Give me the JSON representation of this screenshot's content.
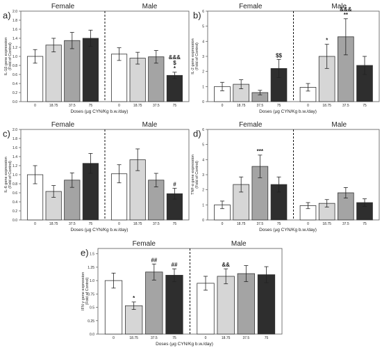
{
  "panel_letters": [
    "a)",
    "b)",
    "c)",
    "d)",
    "e)"
  ],
  "colors": {
    "0": "#ffffff",
    "18.75": "#d6d6d6",
    "37.5": "#a4a4a4",
    "75": "#2e2e2e"
  },
  "chart_data": [
    {
      "type": "bar",
      "letter": "a)",
      "ylabel": "IL-1β gene expression",
      "ylabel2": "(Fold of Control)",
      "xlabel": "Doses (µg CYN/Kg b.w./day)",
      "ylim": [
        0,
        2.0
      ],
      "yticks": [
        0,
        0.2,
        0.4,
        0.6,
        0.8,
        1.0,
        1.2,
        1.4,
        1.6,
        1.8,
        2.0
      ],
      "ytick_labels": [
        "0.0",
        "0.2",
        "0.4",
        "0.6",
        "0.8",
        "1.0",
        "1.2",
        "1.4",
        "1.6",
        "1.8",
        "2.0"
      ],
      "categories": [
        "0",
        "18.75",
        "37.5",
        "75"
      ],
      "series": [
        {
          "name": "Female",
          "values": [
            1.0,
            1.25,
            1.35,
            1.4
          ],
          "errors": [
            0.15,
            0.15,
            0.18,
            0.18
          ],
          "annotations": [
            "",
            "",
            "",
            ""
          ]
        },
        {
          "name": "Male",
          "values": [
            1.05,
            0.96,
            0.99,
            0.58
          ],
          "errors": [
            0.14,
            0.13,
            0.14,
            0.07
          ],
          "annotations": [
            "",
            "",
            "",
            "&&&\n$\n*"
          ]
        }
      ]
    },
    {
      "type": "bar",
      "letter": "b)",
      "ylabel": "IL-2 gene expression",
      "ylabel2": "(Fold of Control)",
      "xlabel": "Doses (µg CYN/Kg b.w./day)",
      "ylim": [
        0,
        6
      ],
      "yticks": [
        0,
        1,
        2,
        3,
        4,
        5,
        6
      ],
      "ytick_labels": [
        "0",
        "1",
        "2",
        "3",
        "4",
        "5",
        "6"
      ],
      "categories": [
        "0",
        "18.75",
        "37.5",
        "75"
      ],
      "series": [
        {
          "name": "Female",
          "values": [
            1.0,
            1.15,
            0.6,
            2.2
          ],
          "errors": [
            0.28,
            0.3,
            0.15,
            0.6
          ],
          "annotations": [
            "",
            "",
            "",
            "$$"
          ]
        },
        {
          "name": "Male",
          "values": [
            0.95,
            3.0,
            4.3,
            2.4
          ],
          "errors": [
            0.25,
            0.8,
            1.2,
            0.6
          ],
          "annotations": [
            "",
            "*",
            "&&&\n**",
            ""
          ]
        }
      ]
    },
    {
      "type": "bar",
      "letter": "c)",
      "ylabel": "IL-6 gene expression",
      "ylabel2": "(Fold of Control)",
      "xlabel": "Doses (µg CYN/Kg b.w./day)",
      "ylim": [
        0,
        2.0
      ],
      "yticks": [
        0,
        0.2,
        0.4,
        0.6,
        0.8,
        1.0,
        1.2,
        1.4,
        1.6,
        1.8,
        2.0
      ],
      "ytick_labels": [
        "0.0",
        "0.2",
        "0.4",
        "0.6",
        "0.8",
        "1.0",
        "1.2",
        "1.4",
        "1.6",
        "1.8",
        "2.0"
      ],
      "categories": [
        "0",
        "18.75",
        "37.5",
        "75"
      ],
      "series": [
        {
          "name": "Female",
          "values": [
            1.0,
            0.63,
            0.88,
            1.25
          ],
          "errors": [
            0.2,
            0.13,
            0.16,
            0.22
          ],
          "annotations": [
            "",
            "",
            "",
            ""
          ]
        },
        {
          "name": "Male",
          "values": [
            1.02,
            1.33,
            0.88,
            0.58
          ],
          "errors": [
            0.2,
            0.24,
            0.15,
            0.12
          ],
          "annotations": [
            "",
            "",
            "",
            "#"
          ]
        }
      ]
    },
    {
      "type": "bar",
      "letter": "d)",
      "ylabel": "TNF-α gene expression",
      "ylabel2": "(Fold of Control)",
      "xlabel": "Doses (µg CYN/Kg b.w./day)",
      "ylim": [
        0,
        6
      ],
      "yticks": [
        0,
        1,
        2,
        3,
        4,
        5,
        6
      ],
      "ytick_labels": [
        "0",
        "1",
        "2",
        "3",
        "4",
        "5",
        "6"
      ],
      "categories": [
        "0",
        "18.75",
        "37.5",
        "75"
      ],
      "series": [
        {
          "name": "Female",
          "values": [
            1.0,
            2.35,
            3.55,
            2.35
          ],
          "errors": [
            0.25,
            0.5,
            0.75,
            0.5
          ],
          "annotations": [
            "",
            "",
            "***",
            ""
          ]
        },
        {
          "name": "Male",
          "values": [
            0.95,
            1.1,
            1.8,
            1.15
          ],
          "errors": [
            0.2,
            0.25,
            0.35,
            0.25
          ],
          "annotations": [
            "",
            "",
            "",
            ""
          ]
        }
      ]
    },
    {
      "type": "bar",
      "letter": "e)",
      "ylabel": "IFN γ gene expression",
      "ylabel2": "(Fold of Control)",
      "xlabel": "Doses (µg CYN/Kg b.w./day)",
      "ylim": [
        0,
        1.6
      ],
      "yticks": [
        0,
        0.25,
        0.5,
        0.75,
        1.0,
        1.25,
        1.5
      ],
      "ytick_labels": [
        "0.0",
        "0.25",
        "0.5",
        "0.75",
        "1.0",
        "1.25",
        "1.5"
      ],
      "categories": [
        "0",
        "18.75",
        "37.5",
        "75"
      ],
      "series": [
        {
          "name": "Female",
          "values": [
            1.0,
            0.53,
            1.16,
            1.1
          ],
          "errors": [
            0.14,
            0.07,
            0.15,
            0.12
          ],
          "annotations": [
            "",
            "*",
            "##",
            "##"
          ]
        },
        {
          "name": "Male",
          "values": [
            0.95,
            1.08,
            1.13,
            1.11
          ],
          "errors": [
            0.13,
            0.14,
            0.15,
            0.15
          ],
          "annotations": [
            "",
            "&&",
            "",
            ""
          ]
        }
      ]
    }
  ]
}
